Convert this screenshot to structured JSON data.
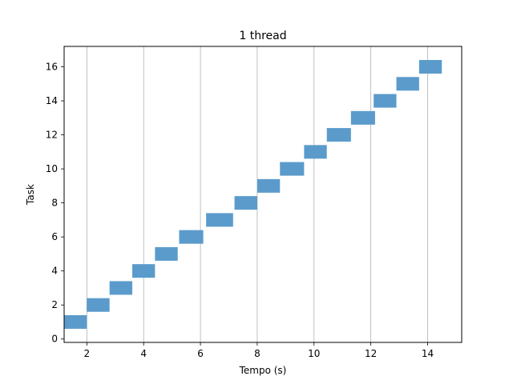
{
  "chart_data": {
    "type": "bar",
    "orientation": "horizontal",
    "title": "1 thread",
    "xlabel": "Tempo (s)",
    "ylabel": "Task",
    "xlim": [
      1.2,
      15.2
    ],
    "ylim": [
      -0.2,
      17.2
    ],
    "xticks": [
      2,
      4,
      6,
      8,
      10,
      12,
      14
    ],
    "yticks": [
      0,
      2,
      4,
      6,
      8,
      10,
      12,
      14,
      16
    ],
    "x_grid": true,
    "y_grid": false,
    "bar_color": "#5b9bcb",
    "bars": [
      {
        "task": 1,
        "start": 1.2,
        "end": 2.0
      },
      {
        "task": 2,
        "start": 2.0,
        "end": 2.8
      },
      {
        "task": 3,
        "start": 2.8,
        "end": 3.6
      },
      {
        "task": 4,
        "start": 3.6,
        "end": 4.4
      },
      {
        "task": 5,
        "start": 4.4,
        "end": 5.2
      },
      {
        "task": 6,
        "start": 5.25,
        "end": 6.1
      },
      {
        "task": 7,
        "start": 6.2,
        "end": 7.15
      },
      {
        "task": 8,
        "start": 7.2,
        "end": 8.0
      },
      {
        "task": 9,
        "start": 8.0,
        "end": 8.8
      },
      {
        "task": 10,
        "start": 8.8,
        "end": 9.65
      },
      {
        "task": 11,
        "start": 9.65,
        "end": 10.45
      },
      {
        "task": 12,
        "start": 10.45,
        "end": 11.3
      },
      {
        "task": 13,
        "start": 11.3,
        "end": 12.15
      },
      {
        "task": 14,
        "start": 12.1,
        "end": 12.9
      },
      {
        "task": 15,
        "start": 12.9,
        "end": 13.7
      },
      {
        "task": 16,
        "start": 13.7,
        "end": 14.5
      }
    ]
  }
}
